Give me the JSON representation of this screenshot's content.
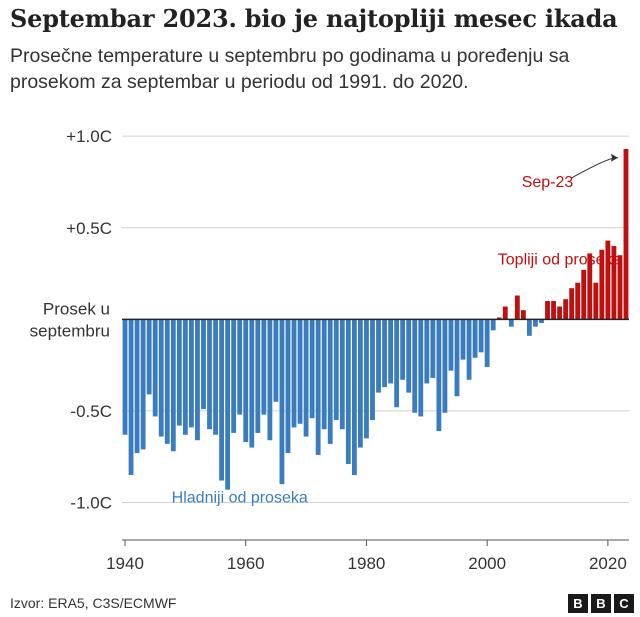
{
  "title": "Septembar 2023. bio je najtopliji mesec ikada",
  "subtitle": "Prosečne temperature u septembru po godinama u poređenju sa prosekom za septembar u periodu od 1991. do 2020.",
  "source": "Izvor: ERA5, C3S/ECMWF",
  "logo": [
    "B",
    "B",
    "C"
  ],
  "colors": {
    "warm": "#c00f0f",
    "cold": "#3a7dbf",
    "axis": "#222222",
    "grid": "#d0d0d0"
  },
  "chart_data": {
    "type": "bar",
    "x": [
      1940,
      1941,
      1942,
      1943,
      1944,
      1945,
      1946,
      1947,
      1948,
      1949,
      1950,
      1951,
      1952,
      1953,
      1954,
      1955,
      1956,
      1957,
      1958,
      1959,
      1960,
      1961,
      1962,
      1963,
      1964,
      1965,
      1966,
      1967,
      1968,
      1969,
      1970,
      1971,
      1972,
      1973,
      1974,
      1975,
      1976,
      1977,
      1978,
      1979,
      1980,
      1981,
      1982,
      1983,
      1984,
      1985,
      1986,
      1987,
      1988,
      1989,
      1990,
      1991,
      1992,
      1993,
      1994,
      1995,
      1996,
      1997,
      1998,
      1999,
      2000,
      2001,
      2002,
      2003,
      2004,
      2005,
      2006,
      2007,
      2008,
      2009,
      2010,
      2011,
      2012,
      2013,
      2014,
      2015,
      2016,
      2017,
      2018,
      2019,
      2020,
      2021,
      2022,
      2023
    ],
    "values": [
      -0.63,
      -0.85,
      -0.73,
      -0.71,
      -0.41,
      -0.53,
      -0.64,
      -0.68,
      -0.72,
      -0.58,
      -0.63,
      -0.59,
      -0.66,
      -0.49,
      -0.6,
      -0.63,
      -0.88,
      -0.93,
      -0.62,
      -0.52,
      -0.67,
      -0.7,
      -0.62,
      -0.52,
      -0.66,
      -0.45,
      -0.9,
      -0.73,
      -0.59,
      -0.57,
      -0.64,
      -0.54,
      -0.74,
      -0.6,
      -0.68,
      -0.55,
      -0.6,
      -0.79,
      -0.85,
      -0.7,
      -0.65,
      -0.55,
      -0.4,
      -0.37,
      -0.35,
      -0.48,
      -0.33,
      -0.4,
      -0.51,
      -0.53,
      -0.35,
      -0.32,
      -0.61,
      -0.51,
      -0.28,
      -0.42,
      -0.22,
      -0.33,
      -0.21,
      -0.18,
      -0.26,
      -0.06,
      0.01,
      0.07,
      -0.04,
      0.13,
      0.05,
      -0.09,
      -0.04,
      -0.02,
      0.1,
      0.1,
      0.07,
      0.11,
      0.17,
      0.2,
      0.27,
      0.36,
      0.2,
      0.38,
      0.43,
      0.4,
      0.35,
      0.93
    ],
    "yticks": [
      {
        "value": 1.0,
        "label": "+1.0C"
      },
      {
        "value": 0.5,
        "label": "+0.5C"
      },
      {
        "value": 0.0,
        "label": "Prosek u septembru"
      },
      {
        "value": -0.5,
        "label": "-0.5C"
      },
      {
        "value": -1.0,
        "label": "-1.0C"
      }
    ],
    "ylim": [
      -1.15,
      1.05
    ],
    "xlim": [
      1939.5,
      2023.5
    ],
    "xticks": [
      1940,
      1960,
      1980,
      2000,
      2020
    ],
    "annotations": {
      "warm": {
        "text": "Topliji od proseka",
        "x": 2012,
        "y": 0.3
      },
      "cold": {
        "text": "Hladniji od proseka",
        "x": 1959,
        "y": -1.0
      },
      "highlight": {
        "text": "Sep-23",
        "x": 2010,
        "y": 0.75,
        "target_year": 2023,
        "target_value": 0.86
      }
    },
    "grid": "horizontal",
    "legend": "none"
  }
}
